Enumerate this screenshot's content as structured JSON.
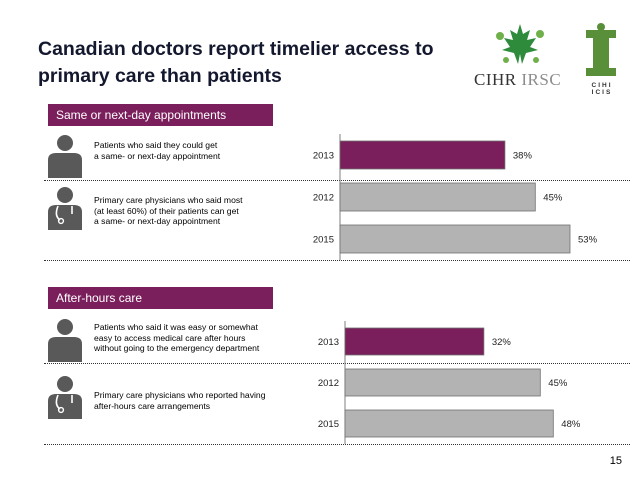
{
  "title": "Canadian doctors report timelier access to primary care than patients",
  "logos": {
    "cihr_left": "CIHR",
    "cihr_right": "IRSC",
    "cihi_line1": "CIHI",
    "cihi_line2": "ICIS"
  },
  "page_number": "15",
  "sections": [
    {
      "header": "Same or next-day appointments",
      "patient_text": [
        "Patients who said they could get",
        "a same- or next-day appointment"
      ],
      "physician_text": [
        "Primary care physicians who said most",
        "(at least 60%) of their patients can get",
        "a same- or next-day appointment"
      ]
    },
    {
      "header": "After-hours care",
      "patient_text": [
        "Patients who said it was easy or somewhat",
        "easy to access medical care after hours",
        "without going to the emergency department"
      ],
      "physician_text": [
        "Primary care physicians who reported having",
        "after-hours care arrangements"
      ]
    }
  ],
  "chart_data": [
    {
      "type": "bar",
      "orientation": "horizontal",
      "categories": [
        "2013",
        "2012",
        "2015"
      ],
      "values": [
        38,
        45,
        53
      ],
      "labels": [
        "38%",
        "45%",
        "53%"
      ],
      "colors": [
        "#7a1f5c",
        "#b3b3b3",
        "#b3b3b3"
      ],
      "xlim": [
        0,
        60
      ]
    },
    {
      "type": "bar",
      "orientation": "horizontal",
      "categories": [
        "2013",
        "2012",
        "2015"
      ],
      "values": [
        32,
        45,
        48
      ],
      "labels": [
        "32%",
        "45%",
        "48%"
      ],
      "colors": [
        "#7a1f5c",
        "#b3b3b3",
        "#b3b3b3"
      ],
      "xlim": [
        0,
        60
      ]
    }
  ]
}
